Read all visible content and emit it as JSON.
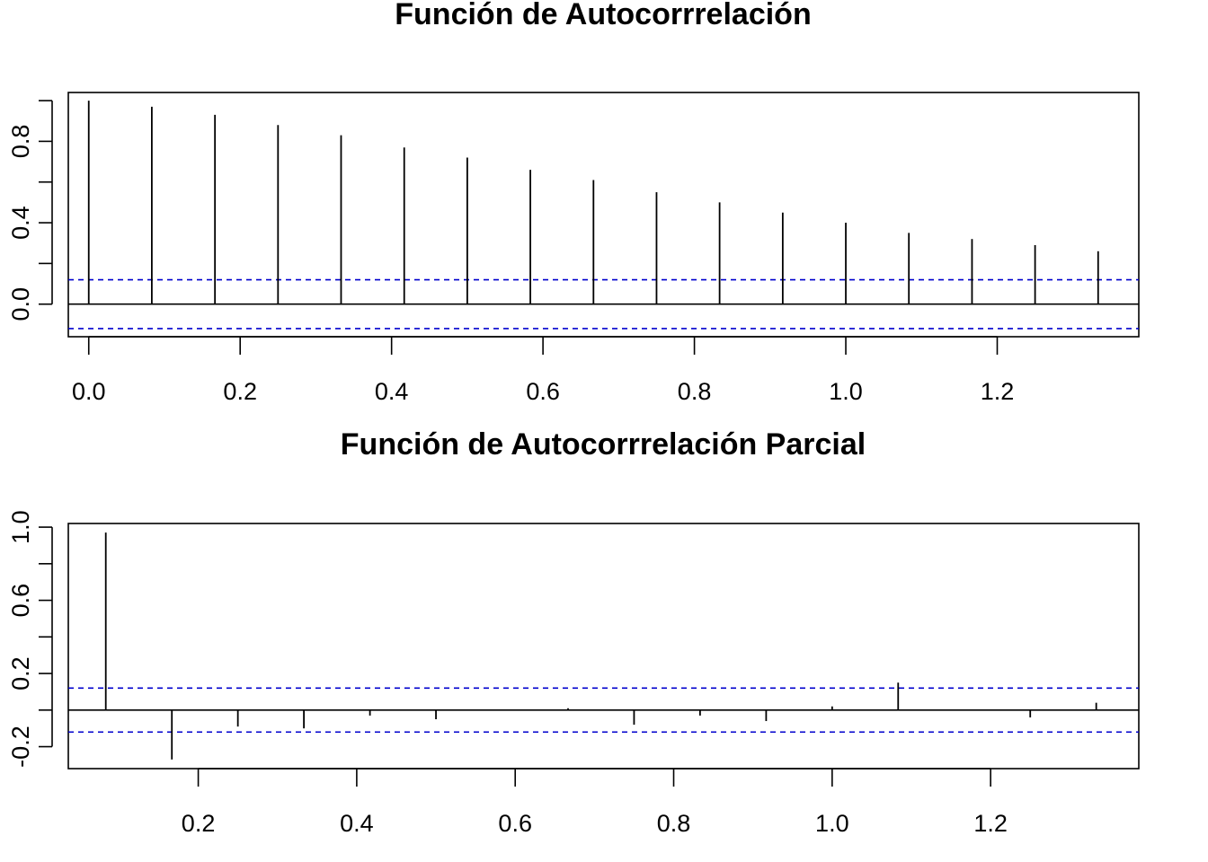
{
  "chart_data": [
    {
      "type": "bar",
      "title": "Función de Autocorrrelación",
      "xlabel": "",
      "ylabel": "",
      "xlim": [
        -0.027,
        1.387
      ],
      "ylim": [
        -0.16,
        1.04
      ],
      "x_ticks": [
        0.0,
        0.2,
        0.4,
        0.6,
        0.8,
        1.0,
        1.2
      ],
      "x_tick_labels": [
        "0.0",
        "0.2",
        "0.4",
        "0.6",
        "0.8",
        "1.0",
        "1.2"
      ],
      "y_ticks": [
        0.0,
        0.2,
        0.4,
        0.6,
        0.8,
        1.0
      ],
      "y_tick_labels": [
        "0.0",
        "0.4",
        "0.8"
      ],
      "y_tick_label_values": [
        0.0,
        0.4,
        0.8
      ],
      "confidence_band": [
        0.12,
        -0.12
      ],
      "confidence_color": "#0000CD",
      "grid": false,
      "x": [
        0.0,
        0.0833,
        0.1667,
        0.25,
        0.3333,
        0.4167,
        0.5,
        0.5833,
        0.6667,
        0.75,
        0.8333,
        0.9167,
        1.0,
        1.0833,
        1.1667,
        1.25,
        1.3333
      ],
      "values": [
        1.0,
        0.97,
        0.93,
        0.88,
        0.83,
        0.77,
        0.72,
        0.66,
        0.61,
        0.55,
        0.5,
        0.45,
        0.4,
        0.35,
        0.32,
        0.29,
        0.26
      ]
    },
    {
      "type": "bar",
      "title": "Función de Autocorrrelación Parcial",
      "xlabel": "",
      "ylabel": "",
      "xlim": [
        0.036,
        1.387
      ],
      "ylim": [
        -0.32,
        1.02
      ],
      "x_ticks": [
        0.2,
        0.4,
        0.6,
        0.8,
        1.0,
        1.2
      ],
      "x_tick_labels": [
        "0.2",
        "0.4",
        "0.6",
        "0.8",
        "1.0",
        "1.2"
      ],
      "y_ticks": [
        -0.2,
        0.0,
        0.2,
        0.4,
        0.6,
        0.8,
        1.0
      ],
      "y_tick_labels": [
        "-0.2",
        "0.2",
        "0.6",
        "1.0"
      ],
      "y_tick_label_values": [
        -0.2,
        0.2,
        0.6,
        1.0
      ],
      "confidence_band": [
        0.12,
        -0.12
      ],
      "confidence_color": "#0000CD",
      "grid": false,
      "x": [
        0.0833,
        0.1667,
        0.25,
        0.3333,
        0.4167,
        0.5,
        0.5833,
        0.6667,
        0.75,
        0.8333,
        0.9167,
        1.0,
        1.0833,
        1.1667,
        1.25,
        1.3333
      ],
      "values": [
        0.97,
        -0.27,
        -0.09,
        -0.1,
        -0.03,
        -0.05,
        0.0,
        0.01,
        -0.08,
        -0.03,
        -0.06,
        0.02,
        0.15,
        0.0,
        -0.04,
        0.04
      ]
    }
  ]
}
